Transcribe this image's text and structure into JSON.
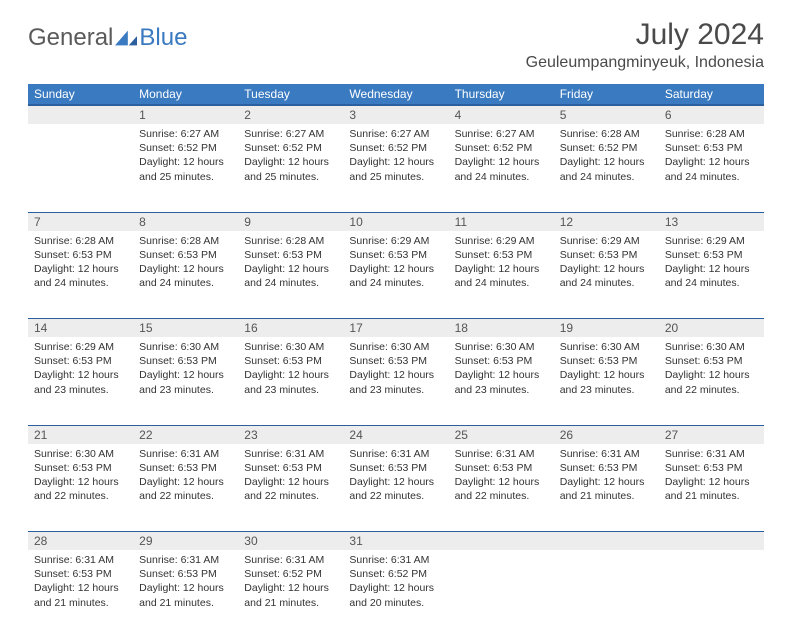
{
  "brand": {
    "part1": "General",
    "part2": "Blue"
  },
  "title": "July 2024",
  "location": "Geuleumpangminyeuk, Indonesia",
  "header_bg": "#3a7ac0",
  "header_border": "#2b5f9e",
  "daynum_bg": "#ededed",
  "text_color": "#333333",
  "weekdays": [
    "Sunday",
    "Monday",
    "Tuesday",
    "Wednesday",
    "Thursday",
    "Friday",
    "Saturday"
  ],
  "weeks": [
    [
      {
        "n": "",
        "sunrise": "",
        "sunset": "",
        "day1": "",
        "day2": ""
      },
      {
        "n": "1",
        "sunrise": "Sunrise: 6:27 AM",
        "sunset": "Sunset: 6:52 PM",
        "day1": "Daylight: 12 hours",
        "day2": "and 25 minutes."
      },
      {
        "n": "2",
        "sunrise": "Sunrise: 6:27 AM",
        "sunset": "Sunset: 6:52 PM",
        "day1": "Daylight: 12 hours",
        "day2": "and 25 minutes."
      },
      {
        "n": "3",
        "sunrise": "Sunrise: 6:27 AM",
        "sunset": "Sunset: 6:52 PM",
        "day1": "Daylight: 12 hours",
        "day2": "and 25 minutes."
      },
      {
        "n": "4",
        "sunrise": "Sunrise: 6:27 AM",
        "sunset": "Sunset: 6:52 PM",
        "day1": "Daylight: 12 hours",
        "day2": "and 24 minutes."
      },
      {
        "n": "5",
        "sunrise": "Sunrise: 6:28 AM",
        "sunset": "Sunset: 6:52 PM",
        "day1": "Daylight: 12 hours",
        "day2": "and 24 minutes."
      },
      {
        "n": "6",
        "sunrise": "Sunrise: 6:28 AM",
        "sunset": "Sunset: 6:53 PM",
        "day1": "Daylight: 12 hours",
        "day2": "and 24 minutes."
      }
    ],
    [
      {
        "n": "7",
        "sunrise": "Sunrise: 6:28 AM",
        "sunset": "Sunset: 6:53 PM",
        "day1": "Daylight: 12 hours",
        "day2": "and 24 minutes."
      },
      {
        "n": "8",
        "sunrise": "Sunrise: 6:28 AM",
        "sunset": "Sunset: 6:53 PM",
        "day1": "Daylight: 12 hours",
        "day2": "and 24 minutes."
      },
      {
        "n": "9",
        "sunrise": "Sunrise: 6:28 AM",
        "sunset": "Sunset: 6:53 PM",
        "day1": "Daylight: 12 hours",
        "day2": "and 24 minutes."
      },
      {
        "n": "10",
        "sunrise": "Sunrise: 6:29 AM",
        "sunset": "Sunset: 6:53 PM",
        "day1": "Daylight: 12 hours",
        "day2": "and 24 minutes."
      },
      {
        "n": "11",
        "sunrise": "Sunrise: 6:29 AM",
        "sunset": "Sunset: 6:53 PM",
        "day1": "Daylight: 12 hours",
        "day2": "and 24 minutes."
      },
      {
        "n": "12",
        "sunrise": "Sunrise: 6:29 AM",
        "sunset": "Sunset: 6:53 PM",
        "day1": "Daylight: 12 hours",
        "day2": "and 24 minutes."
      },
      {
        "n": "13",
        "sunrise": "Sunrise: 6:29 AM",
        "sunset": "Sunset: 6:53 PM",
        "day1": "Daylight: 12 hours",
        "day2": "and 24 minutes."
      }
    ],
    [
      {
        "n": "14",
        "sunrise": "Sunrise: 6:29 AM",
        "sunset": "Sunset: 6:53 PM",
        "day1": "Daylight: 12 hours",
        "day2": "and 23 minutes."
      },
      {
        "n": "15",
        "sunrise": "Sunrise: 6:30 AM",
        "sunset": "Sunset: 6:53 PM",
        "day1": "Daylight: 12 hours",
        "day2": "and 23 minutes."
      },
      {
        "n": "16",
        "sunrise": "Sunrise: 6:30 AM",
        "sunset": "Sunset: 6:53 PM",
        "day1": "Daylight: 12 hours",
        "day2": "and 23 minutes."
      },
      {
        "n": "17",
        "sunrise": "Sunrise: 6:30 AM",
        "sunset": "Sunset: 6:53 PM",
        "day1": "Daylight: 12 hours",
        "day2": "and 23 minutes."
      },
      {
        "n": "18",
        "sunrise": "Sunrise: 6:30 AM",
        "sunset": "Sunset: 6:53 PM",
        "day1": "Daylight: 12 hours",
        "day2": "and 23 minutes."
      },
      {
        "n": "19",
        "sunrise": "Sunrise: 6:30 AM",
        "sunset": "Sunset: 6:53 PM",
        "day1": "Daylight: 12 hours",
        "day2": "and 23 minutes."
      },
      {
        "n": "20",
        "sunrise": "Sunrise: 6:30 AM",
        "sunset": "Sunset: 6:53 PM",
        "day1": "Daylight: 12 hours",
        "day2": "and 22 minutes."
      }
    ],
    [
      {
        "n": "21",
        "sunrise": "Sunrise: 6:30 AM",
        "sunset": "Sunset: 6:53 PM",
        "day1": "Daylight: 12 hours",
        "day2": "and 22 minutes."
      },
      {
        "n": "22",
        "sunrise": "Sunrise: 6:31 AM",
        "sunset": "Sunset: 6:53 PM",
        "day1": "Daylight: 12 hours",
        "day2": "and 22 minutes."
      },
      {
        "n": "23",
        "sunrise": "Sunrise: 6:31 AM",
        "sunset": "Sunset: 6:53 PM",
        "day1": "Daylight: 12 hours",
        "day2": "and 22 minutes."
      },
      {
        "n": "24",
        "sunrise": "Sunrise: 6:31 AM",
        "sunset": "Sunset: 6:53 PM",
        "day1": "Daylight: 12 hours",
        "day2": "and 22 minutes."
      },
      {
        "n": "25",
        "sunrise": "Sunrise: 6:31 AM",
        "sunset": "Sunset: 6:53 PM",
        "day1": "Daylight: 12 hours",
        "day2": "and 22 minutes."
      },
      {
        "n": "26",
        "sunrise": "Sunrise: 6:31 AM",
        "sunset": "Sunset: 6:53 PM",
        "day1": "Daylight: 12 hours",
        "day2": "and 21 minutes."
      },
      {
        "n": "27",
        "sunrise": "Sunrise: 6:31 AM",
        "sunset": "Sunset: 6:53 PM",
        "day1": "Daylight: 12 hours",
        "day2": "and 21 minutes."
      }
    ],
    [
      {
        "n": "28",
        "sunrise": "Sunrise: 6:31 AM",
        "sunset": "Sunset: 6:53 PM",
        "day1": "Daylight: 12 hours",
        "day2": "and 21 minutes."
      },
      {
        "n": "29",
        "sunrise": "Sunrise: 6:31 AM",
        "sunset": "Sunset: 6:53 PM",
        "day1": "Daylight: 12 hours",
        "day2": "and 21 minutes."
      },
      {
        "n": "30",
        "sunrise": "Sunrise: 6:31 AM",
        "sunset": "Sunset: 6:52 PM",
        "day1": "Daylight: 12 hours",
        "day2": "and 21 minutes."
      },
      {
        "n": "31",
        "sunrise": "Sunrise: 6:31 AM",
        "sunset": "Sunset: 6:52 PM",
        "day1": "Daylight: 12 hours",
        "day2": "and 20 minutes."
      },
      {
        "n": "",
        "sunrise": "",
        "sunset": "",
        "day1": "",
        "day2": ""
      },
      {
        "n": "",
        "sunrise": "",
        "sunset": "",
        "day1": "",
        "day2": ""
      },
      {
        "n": "",
        "sunrise": "",
        "sunset": "",
        "day1": "",
        "day2": ""
      }
    ]
  ]
}
